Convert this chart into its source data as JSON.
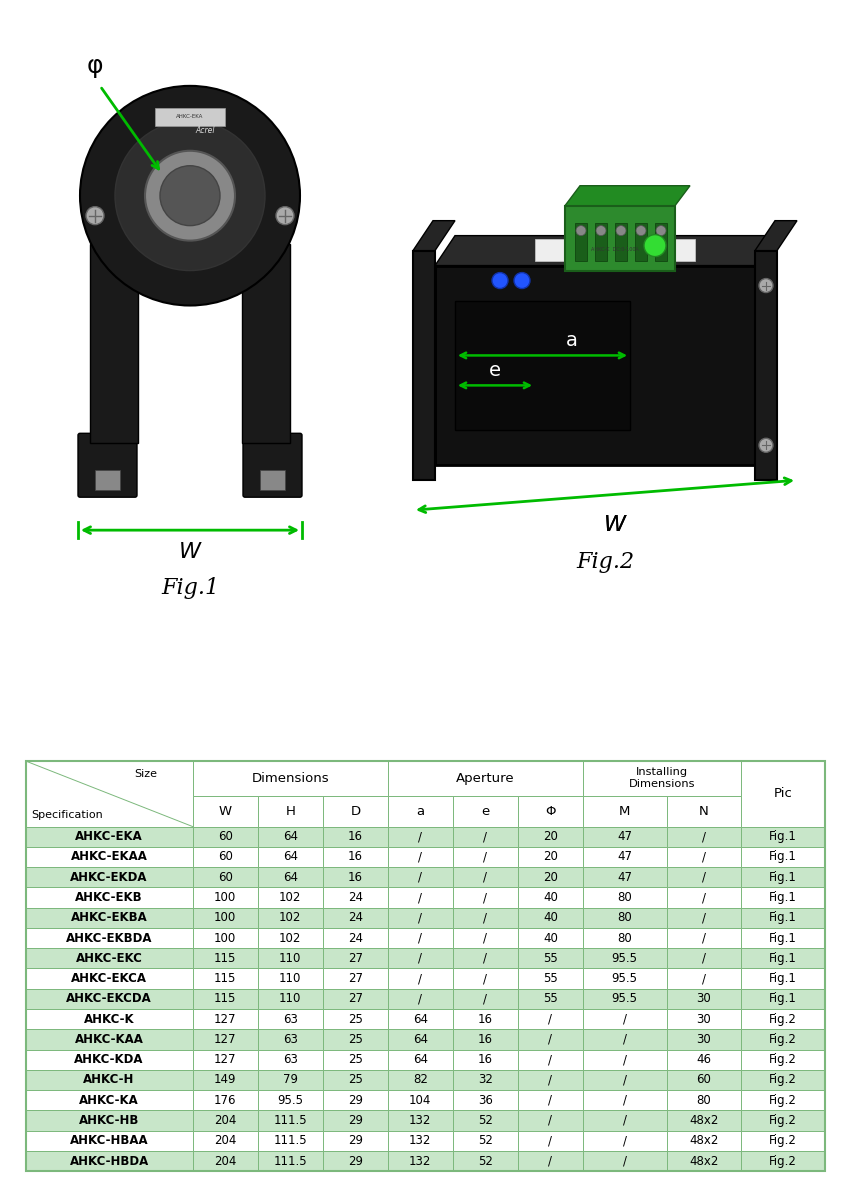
{
  "rows": [
    [
      "AHKC-EKA",
      "60",
      "64",
      "16",
      "/",
      "/",
      "20",
      "47",
      "/",
      "Fig.1"
    ],
    [
      "AHKC-EKAA",
      "60",
      "64",
      "16",
      "/",
      "/",
      "20",
      "47",
      "/",
      "Fig.1"
    ],
    [
      "AHKC-EKDA",
      "60",
      "64",
      "16",
      "/",
      "/",
      "20",
      "47",
      "/",
      "Fig.1"
    ],
    [
      "AHKC-EKB",
      "100",
      "102",
      "24",
      "/",
      "/",
      "40",
      "80",
      "/",
      "Fig.1"
    ],
    [
      "AHKC-EKBA",
      "100",
      "102",
      "24",
      "/",
      "/",
      "40",
      "80",
      "/",
      "Fig.1"
    ],
    [
      "AHKC-EKBDA",
      "100",
      "102",
      "24",
      "/",
      "/",
      "40",
      "80",
      "/",
      "Fig.1"
    ],
    [
      "AHKC-EKC",
      "115",
      "110",
      "27",
      "/",
      "/",
      "55",
      "95.5",
      "/",
      "Fig.1"
    ],
    [
      "AHKC-EKCA",
      "115",
      "110",
      "27",
      "/",
      "/",
      "55",
      "95.5",
      "/",
      "Fig.1"
    ],
    [
      "AHKC-EKCDA",
      "115",
      "110",
      "27",
      "/",
      "/",
      "55",
      "95.5",
      "30",
      "Fig.1"
    ],
    [
      "AHKC-K",
      "127",
      "63",
      "25",
      "64",
      "16",
      "/",
      "/",
      "30",
      "Fig.2"
    ],
    [
      "AHKC-KAA",
      "127",
      "63",
      "25",
      "64",
      "16",
      "/",
      "/",
      "30",
      "Fig.2"
    ],
    [
      "AHKC-KDA",
      "127",
      "63",
      "25",
      "64",
      "16",
      "/",
      "/",
      "46",
      "Fig.2"
    ],
    [
      "AHKC-H",
      "149",
      "79",
      "25",
      "82",
      "32",
      "/",
      "/",
      "60",
      "Fig.2"
    ],
    [
      "AHKC-KA",
      "176",
      "95.5",
      "29",
      "104",
      "36",
      "/",
      "/",
      "80",
      "Fig.2"
    ],
    [
      "AHKC-HB",
      "204",
      "111.5",
      "29",
      "132",
      "52",
      "/",
      "/",
      "48x2",
      "Fig.2"
    ],
    [
      "AHKC-HBAA",
      "204",
      "111.5",
      "29",
      "132",
      "52",
      "/",
      "/",
      "48x2",
      "Fig.2"
    ],
    [
      "AHKC-HBDA",
      "204",
      "111.5",
      "29",
      "132",
      "52",
      "/",
      "/",
      "48x2",
      "Fig.2"
    ]
  ],
  "highlighted_rows": [
    0,
    2,
    4,
    6,
    8,
    10,
    12,
    14,
    16
  ],
  "highlight_color": "#c8e6c9",
  "normal_color": "#ffffff",
  "border_color": "#7cb87c",
  "col_widths": [
    1.8,
    0.7,
    0.7,
    0.7,
    0.7,
    0.7,
    0.7,
    0.9,
    0.8,
    0.9
  ],
  "sub_headers": [
    "W",
    "H",
    "D",
    "a",
    "e",
    "Φ",
    "M",
    "N"
  ],
  "green": "#00bb00",
  "dark_sensor": "#1a1a1a",
  "mid_sensor": "#2d2d2d",
  "light_sensor": "#555555",
  "silver": "#aaaaaa"
}
